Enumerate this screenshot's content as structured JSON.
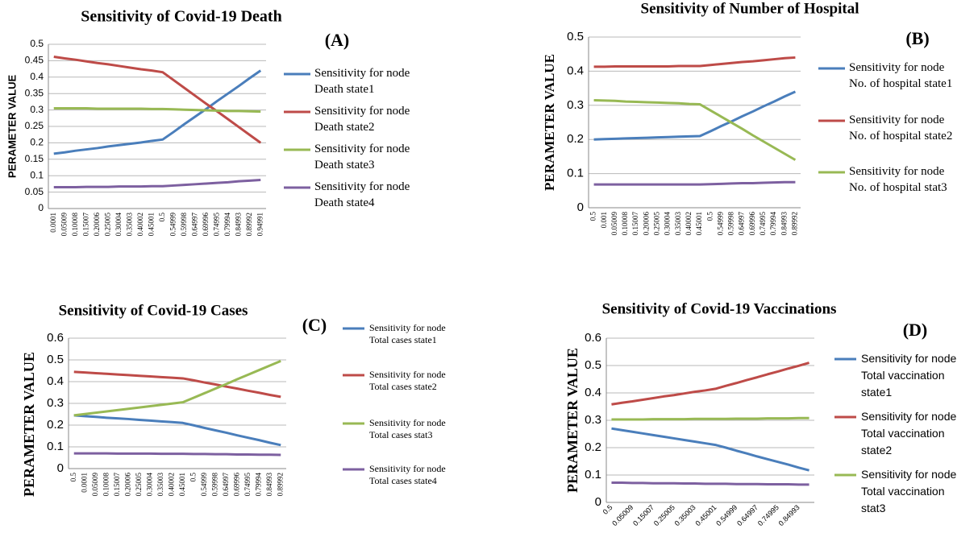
{
  "chart_data": [
    {
      "type": "line",
      "title": "Sensitivity of Covid-19 Death",
      "panel_label": "(A)",
      "y_label": "PERAMETER VALUE",
      "categories": [
        "0.0001",
        "0.05009",
        "0.10008",
        "0.15007",
        "0.20006",
        "0.25005",
        "0.30004",
        "0.35003",
        "0.40002",
        "0.45001",
        "0.5",
        "0.54999",
        "0.59998",
        "0.64997",
        "0.69996",
        "0.74995",
        "0.79994",
        "0.84993",
        "0.89992",
        "0.94991"
      ],
      "ylim": [
        0,
        0.5
      ],
      "yticks": [
        0,
        0.05,
        0.1,
        0.15,
        0.2,
        0.25,
        0.3,
        0.35,
        0.4,
        0.45,
        0.5
      ],
      "grid": true,
      "series": [
        {
          "name": "Sensitivity for node Death state1",
          "color": "#4a7ebb",
          "values": [
            0.167,
            0.171,
            0.176,
            0.18,
            0.184,
            0.189,
            0.193,
            0.197,
            0.201,
            0.206,
            0.21,
            0.233,
            0.257,
            0.28,
            0.303,
            0.327,
            0.35,
            0.373,
            0.397,
            0.42
          ]
        },
        {
          "name": "Sensitivity for node Death state2",
          "color": "#be4b48",
          "values": [
            0.462,
            0.457,
            0.453,
            0.448,
            0.443,
            0.439,
            0.434,
            0.429,
            0.424,
            0.42,
            0.415,
            0.391,
            0.367,
            0.343,
            0.319,
            0.296,
            0.272,
            0.248,
            0.224,
            0.2
          ]
        },
        {
          "name": "Sensitivity for node Death state3",
          "color": "#98b954",
          "values": [
            0.305,
            0.305,
            0.305,
            0.305,
            0.304,
            0.304,
            0.304,
            0.304,
            0.304,
            0.303,
            0.303,
            0.302,
            0.301,
            0.3,
            0.299,
            0.298,
            0.297,
            0.297,
            0.296,
            0.295
          ]
        },
        {
          "name": "Sensitivity for node Death state4",
          "color": "#7d60a0",
          "values": [
            0.065,
            0.065,
            0.065,
            0.066,
            0.066,
            0.066,
            0.067,
            0.067,
            0.067,
            0.068,
            0.068,
            0.07,
            0.072,
            0.074,
            0.076,
            0.078,
            0.08,
            0.083,
            0.085,
            0.087
          ]
        }
      ]
    },
    {
      "type": "line",
      "title": "Sensitivity of Number of Hospital",
      "panel_label": "(B)",
      "y_label": "PERAMETER VALUE",
      "categories": [
        "0.5",
        "0.001",
        "0.05009",
        "0.10008",
        "0.15007",
        "0.20006",
        "0.25005",
        "0.30004",
        "0.35003",
        "0.40002",
        "0.45001",
        "0.5",
        "0.54999",
        "0.59998",
        "0.64997",
        "0.69996",
        "0.74995",
        "0.79994",
        "0.84993",
        "0.89992"
      ],
      "ylim": [
        0,
        0.5
      ],
      "yticks": [
        0,
        0.1,
        0.2,
        0.3,
        0.4,
        0.5
      ],
      "grid": true,
      "series": [
        {
          "name": "Sensitivity for node No. of hospital state1",
          "color": "#4a7ebb",
          "values": [
            0.2,
            0.201,
            0.202,
            0.203,
            0.204,
            0.205,
            0.206,
            0.207,
            0.208,
            0.209,
            0.21,
            0.224,
            0.239,
            0.253,
            0.268,
            0.282,
            0.297,
            0.311,
            0.326,
            0.34
          ]
        },
        {
          "name": "Sensitivity for node No. of hospital state2",
          "color": "#be4b48",
          "values": [
            0.413,
            0.413,
            0.414,
            0.414,
            0.414,
            0.414,
            0.414,
            0.414,
            0.415,
            0.415,
            0.415,
            0.418,
            0.421,
            0.424,
            0.427,
            0.429,
            0.432,
            0.435,
            0.438,
            0.44
          ]
        },
        {
          "name": "Sensitivity for node No. of hospital stat3",
          "color": "#98b954",
          "values": [
            0.315,
            0.314,
            0.313,
            0.311,
            0.31,
            0.309,
            0.308,
            0.307,
            0.306,
            0.304,
            0.303,
            0.285,
            0.267,
            0.249,
            0.231,
            0.212,
            0.194,
            0.176,
            0.158,
            0.14
          ]
        },
        {
          "color": "#7d60a0",
          "values": [
            0.068,
            0.068,
            0.068,
            0.068,
            0.068,
            0.068,
            0.068,
            0.068,
            0.068,
            0.068,
            0.068,
            0.069,
            0.07,
            0.071,
            0.072,
            0.072,
            0.073,
            0.074,
            0.075,
            0.075
          ]
        }
      ]
    },
    {
      "type": "line",
      "title": "Sensitivity of Covid-19 Cases",
      "panel_label": "(C)",
      "y_label": "PERAMETER VALUE",
      "categories": [
        "0.5",
        "0.0001",
        "0.05009",
        "0.10008",
        "0.15007",
        "0.20006",
        "0.25005",
        "0.30004",
        "0.35003",
        "0.40002",
        "0.45001",
        "0.5",
        "0.54999",
        "0.59998",
        "0.64997",
        "0.69996",
        "0.74995",
        "0.79994",
        "0.84993",
        "0.89992"
      ],
      "ylim": [
        0,
        0.6
      ],
      "yticks": [
        0,
        0.1,
        0.2,
        0.3,
        0.4,
        0.5,
        0.6
      ],
      "grid": true,
      "series": [
        {
          "name": "Sensitivity for node Total cases state1",
          "color": "#4a7ebb",
          "values": [
            0.245,
            0.241,
            0.238,
            0.234,
            0.231,
            0.228,
            0.224,
            0.221,
            0.217,
            0.214,
            0.21,
            0.199,
            0.187,
            0.176,
            0.165,
            0.153,
            0.142,
            0.131,
            0.119,
            0.108
          ]
        },
        {
          "name": "Sensitivity for node Total cases state2",
          "color": "#be4b48",
          "values": [
            0.445,
            0.442,
            0.439,
            0.436,
            0.433,
            0.43,
            0.427,
            0.424,
            0.421,
            0.418,
            0.415,
            0.406,
            0.396,
            0.387,
            0.377,
            0.368,
            0.358,
            0.349,
            0.339,
            0.33
          ]
        },
        {
          "name": "Sensitivity for node Total cases stat3",
          "color": "#98b954",
          "values": [
            0.245,
            0.251,
            0.257,
            0.263,
            0.269,
            0.275,
            0.281,
            0.287,
            0.293,
            0.299,
            0.305,
            0.326,
            0.347,
            0.368,
            0.389,
            0.411,
            0.432,
            0.453,
            0.474,
            0.495
          ]
        },
        {
          "name": "Sensitivity for node Total cases state4",
          "color": "#7d60a0",
          "values": [
            0.07,
            0.07,
            0.07,
            0.07,
            0.069,
            0.069,
            0.069,
            0.069,
            0.068,
            0.068,
            0.068,
            0.067,
            0.067,
            0.066,
            0.066,
            0.065,
            0.065,
            0.064,
            0.064,
            0.063
          ]
        }
      ]
    },
    {
      "type": "line",
      "title": "Sensitivity of Covid-19 Vaccinations",
      "panel_label": "(D)",
      "y_label": "PERAMETER VALUE",
      "categories": [
        "0.5",
        null,
        "0.05009",
        null,
        "0.15007",
        null,
        "0.25005",
        null,
        "0.35003",
        null,
        "0.45001",
        null,
        "0.54999",
        null,
        "0.64997",
        null,
        "0.74995",
        null,
        "0.84993",
        null
      ],
      "ylim": [
        0,
        0.6
      ],
      "yticks": [
        0,
        0.1,
        0.2,
        0.3,
        0.4,
        0.5,
        0.6
      ],
      "grid": true,
      "series": [
        {
          "name": "Sensitivity for node Total vaccination state1",
          "color": "#4a7ebb",
          "values": [
            0.27,
            0.264,
            0.258,
            0.252,
            0.246,
            0.24,
            0.234,
            0.228,
            0.222,
            0.216,
            0.21,
            0.2,
            0.189,
            0.179,
            0.168,
            0.158,
            0.148,
            0.138,
            0.127,
            0.117
          ]
        },
        {
          "name": "Sensitivity for node Total vaccination state2",
          "color": "#be4b48",
          "values": [
            0.358,
            0.364,
            0.369,
            0.375,
            0.381,
            0.387,
            0.392,
            0.398,
            0.404,
            0.409,
            0.415,
            0.426,
            0.436,
            0.447,
            0.457,
            0.468,
            0.478,
            0.489,
            0.499,
            0.51
          ]
        },
        {
          "name": "Sensitivity for node Total vaccination stat3",
          "color": "#98b954",
          "values": [
            0.303,
            0.303,
            0.303,
            0.303,
            0.304,
            0.304,
            0.304,
            0.304,
            0.305,
            0.305,
            0.305,
            0.305,
            0.306,
            0.306,
            0.306,
            0.307,
            0.307,
            0.307,
            0.308,
            0.308
          ]
        },
        {
          "color": "#7d60a0",
          "values": [
            0.072,
            0.072,
            0.071,
            0.071,
            0.07,
            0.07,
            0.07,
            0.069,
            0.069,
            0.068,
            0.068,
            0.068,
            0.067,
            0.067,
            0.067,
            0.066,
            0.066,
            0.066,
            0.065,
            0.065
          ]
        }
      ]
    }
  ]
}
